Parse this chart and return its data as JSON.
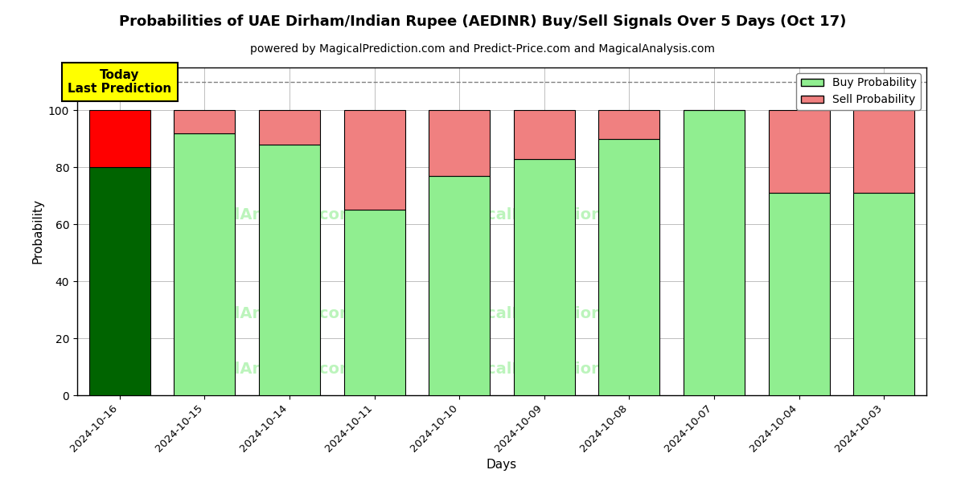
{
  "title": "Probabilities of UAE Dirham/Indian Rupee (AEDINR) Buy/Sell Signals Over 5 Days (Oct 17)",
  "subtitle": "powered by MagicalPrediction.com and Predict-Price.com and MagicalAnalysis.com",
  "xlabel": "Days",
  "ylabel": "Probability",
  "dates": [
    "2024-10-16",
    "2024-10-15",
    "2024-10-14",
    "2024-10-11",
    "2024-10-10",
    "2024-10-09",
    "2024-10-08",
    "2024-10-07",
    "2024-10-04",
    "2024-10-03"
  ],
  "buy_values": [
    80,
    92,
    88,
    65,
    77,
    83,
    90,
    100,
    71,
    71
  ],
  "sell_values": [
    20,
    8,
    12,
    35,
    23,
    17,
    10,
    0,
    29,
    29
  ],
  "today_buy_color": "#006400",
  "today_sell_color": "#FF0000",
  "buy_color": "#90EE90",
  "sell_color": "#F08080",
  "today_label_bg": "#FFFF00",
  "today_annotation": "Today\nLast Prediction",
  "dashed_line_y": 110,
  "ylim": [
    0,
    115
  ],
  "title_fontsize": 13,
  "subtitle_fontsize": 10,
  "legend_labels": [
    "Buy Probability",
    "Sell Probability"
  ]
}
